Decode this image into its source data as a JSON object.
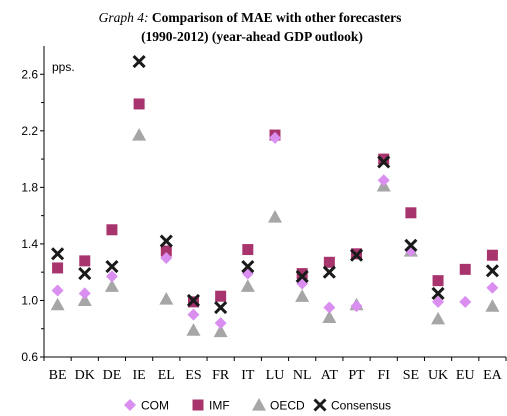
{
  "chart_data": {
    "type": "scatter",
    "title_prefix": "Graph 4:",
    "title_rest": " Comparison of MAE with other forecasters",
    "subtitle": "(1990-2012) (year-ahead GDP outlook)",
    "ylabel": "pps.",
    "ylim": [
      0.6,
      2.8
    ],
    "yticks": [
      "0.6",
      "1.0",
      "1.4",
      "1.8",
      "2.2",
      "2.6"
    ],
    "categories": [
      "BE",
      "DK",
      "DE",
      "IE",
      "EL",
      "ES",
      "FR",
      "IT",
      "LU",
      "NL",
      "AT",
      "PT",
      "FI",
      "SE",
      "UK",
      "EU",
      "EA"
    ],
    "legend_position": "bottom",
    "series": [
      {
        "name": "COM",
        "marker": "diamond",
        "color": "#d98ef0",
        "values": [
          1.07,
          1.05,
          1.17,
          null,
          1.3,
          0.9,
          0.84,
          1.19,
          2.15,
          1.12,
          0.95,
          0.96,
          1.85,
          1.35,
          0.99,
          0.99,
          1.09
        ]
      },
      {
        "name": "IMF",
        "marker": "square",
        "color": "#a8346e",
        "values": [
          1.23,
          1.28,
          1.5,
          2.39,
          1.35,
          0.99,
          1.03,
          1.36,
          2.17,
          1.19,
          1.27,
          1.33,
          2.0,
          1.62,
          1.14,
          1.22,
          1.32
        ]
      },
      {
        "name": "OECD",
        "marker": "triangle",
        "color": "#a6a6a6",
        "values": [
          0.97,
          1.0,
          1.1,
          2.17,
          1.01,
          0.79,
          0.78,
          1.1,
          1.59,
          1.03,
          0.88,
          0.97,
          1.81,
          1.35,
          0.87,
          null,
          0.96
        ]
      },
      {
        "name": "Consensus",
        "marker": "cross",
        "color": "#1a1a1a",
        "values": [
          1.33,
          1.19,
          1.24,
          2.69,
          1.42,
          1.0,
          0.95,
          1.24,
          null,
          1.17,
          1.2,
          1.32,
          1.98,
          1.39,
          1.05,
          null,
          1.21
        ]
      }
    ]
  }
}
